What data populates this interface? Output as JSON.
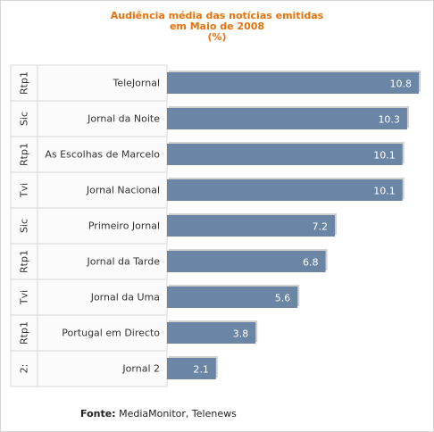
{
  "chart_data": {
    "type": "bar",
    "orientation": "horizontal",
    "title_lines": [
      "Audiência média das notícias emitidas",
      "em Maio de 2008",
      "(%)"
    ],
    "groups": [
      "Rtp1",
      "Sic",
      "Rtp1",
      "Tvi",
      "Sic",
      "Rtp1",
      "Tvi",
      "Rtp1",
      "2:"
    ],
    "categories": [
      "TeleJornal",
      "Jornal da Noite",
      "As Escolhas de Marcelo",
      "Jornal Nacional",
      "Primeiro Jornal",
      "Jornal da Tarde",
      "Jornal da Uma",
      "Portugal em Directo",
      "Jornal 2"
    ],
    "values": [
      10.8,
      10.3,
      10.1,
      10.1,
      7.2,
      6.8,
      5.6,
      3.8,
      2.1
    ],
    "value_labels": [
      "10.8",
      "10.3",
      "10.1",
      "10.1",
      "7.2",
      "6.8",
      "5.6",
      "3.8",
      "2.1"
    ],
    "xlim": [
      0,
      10.8
    ],
    "bar_color": "#6b85a4",
    "value_label_color": "#ffffff",
    "grid": false,
    "legend": "none"
  },
  "source": {
    "label": "Fonte:",
    "text": "MediaMonitor, Telenews"
  },
  "colors": {
    "title": "#e8710a",
    "bar": "#6b85a4",
    "divider": "#d9d9d9"
  }
}
